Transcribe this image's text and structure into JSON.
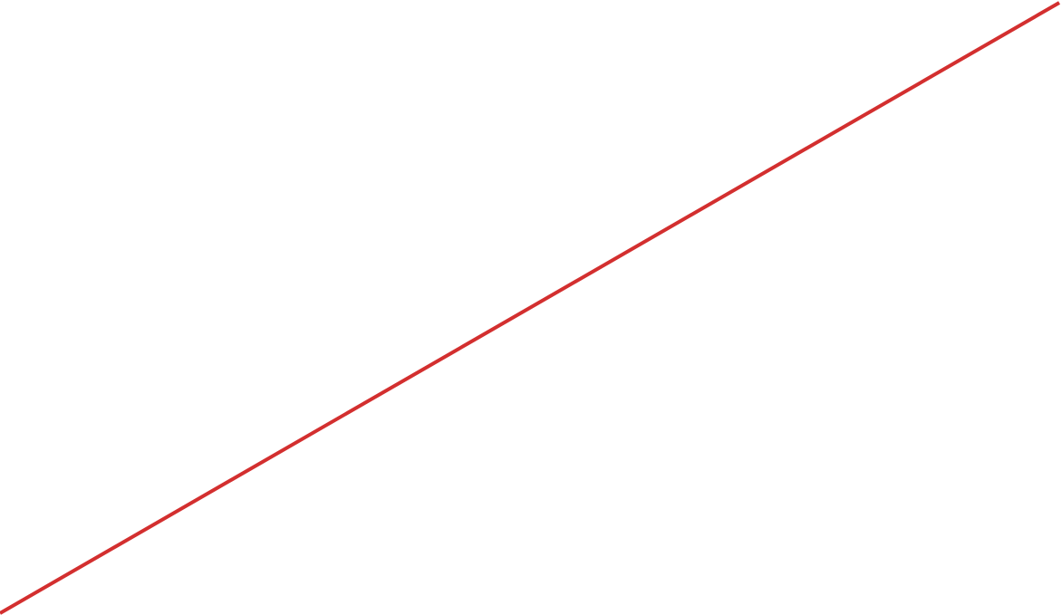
{
  "canvas": {
    "background": "#ffffff"
  },
  "line": {
    "color": "#d32f2f"
  }
}
